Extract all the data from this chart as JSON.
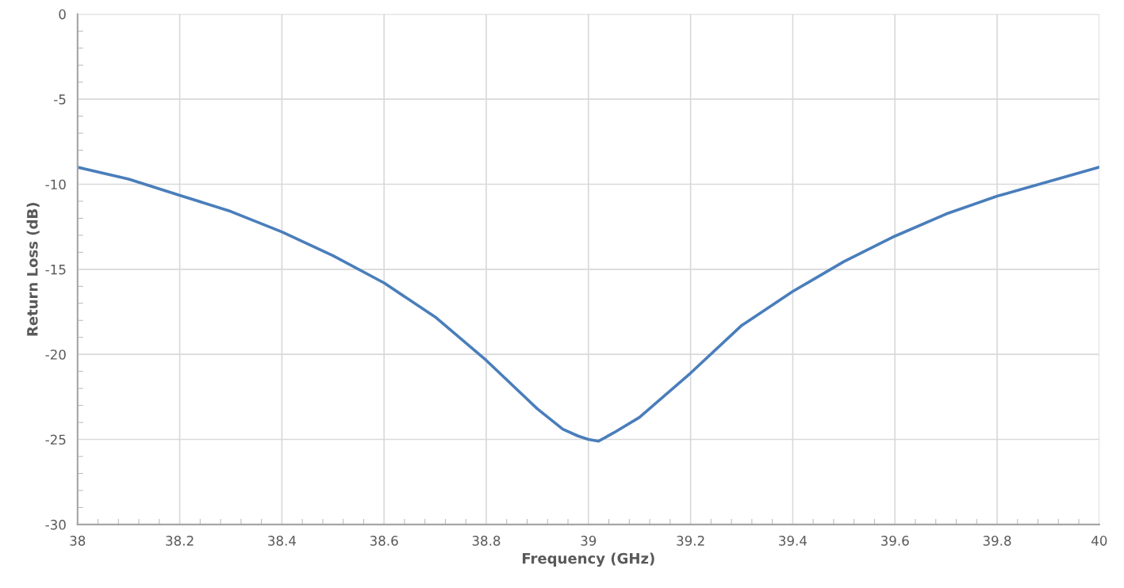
{
  "chart_data": {
    "type": "line",
    "xlabel": "Frequency (GHz)",
    "ylabel": "Return Loss (dB)",
    "x": [
      38.0,
      38.1,
      38.2,
      38.3,
      38.4,
      38.5,
      38.6,
      38.7,
      38.8,
      38.9,
      38.95,
      38.98,
      39.0,
      39.02,
      39.05,
      39.1,
      39.2,
      39.3,
      39.4,
      39.5,
      39.6,
      39.7,
      39.8,
      39.9,
      40.0
    ],
    "series": [
      {
        "color": "#4a7ebb",
        "values": [
          -9.0,
          -9.7,
          -10.65,
          -11.6,
          -12.8,
          -14.2,
          -15.8,
          -17.8,
          -20.35,
          -23.2,
          -24.4,
          -24.8,
          -25.0,
          -25.1,
          -24.6,
          -23.7,
          -21.1,
          -18.3,
          -16.3,
          -14.55,
          -13.05,
          -11.75,
          -10.7,
          -9.85,
          -9.0
        ]
      }
    ],
    "xlim": [
      38,
      40
    ],
    "ylim": [
      -30,
      0
    ],
    "xticks": [
      38,
      38.2,
      38.4,
      38.6,
      38.8,
      39,
      39.2,
      39.4,
      39.6,
      39.8,
      40
    ],
    "yticks": [
      -30,
      -25,
      -20,
      -15,
      -10,
      -5,
      0
    ],
    "grid": true,
    "legend": false,
    "marker": "none",
    "line_style": "solid"
  }
}
